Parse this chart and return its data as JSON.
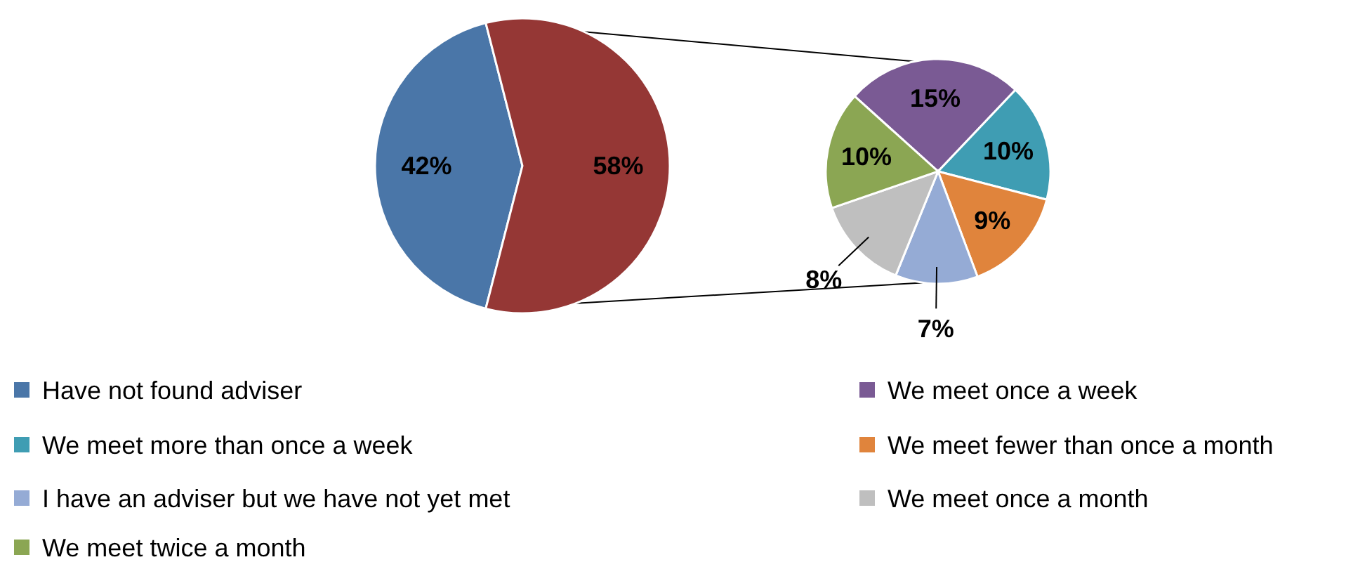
{
  "chart_data": [
    {
      "type": "pie",
      "categories": [
        "Have not found adviser",
        null
      ],
      "values": [
        42,
        58
      ],
      "colors": [
        "#4a76a8",
        "#953735"
      ],
      "value_labels": [
        "42%",
        "58%"
      ],
      "legend": "bottom"
    },
    {
      "type": "pie",
      "categories": [
        "We meet once a week",
        "We meet more than once a week",
        "We meet fewer than once a month",
        "I have an adviser but we have not yet met",
        "We meet once a month",
        "We meet twice a month"
      ],
      "values": [
        15,
        10,
        9,
        7,
        8,
        10
      ],
      "colors": [
        "#7a5a94",
        "#3f9db3",
        "#e0843c",
        "#95abd5",
        "#bfbfbf",
        "#8ba653"
      ],
      "value_labels": [
        "15%",
        "10%",
        "9%",
        "7%",
        "8%",
        "10%"
      ],
      "legend": "bottom"
    }
  ]
}
